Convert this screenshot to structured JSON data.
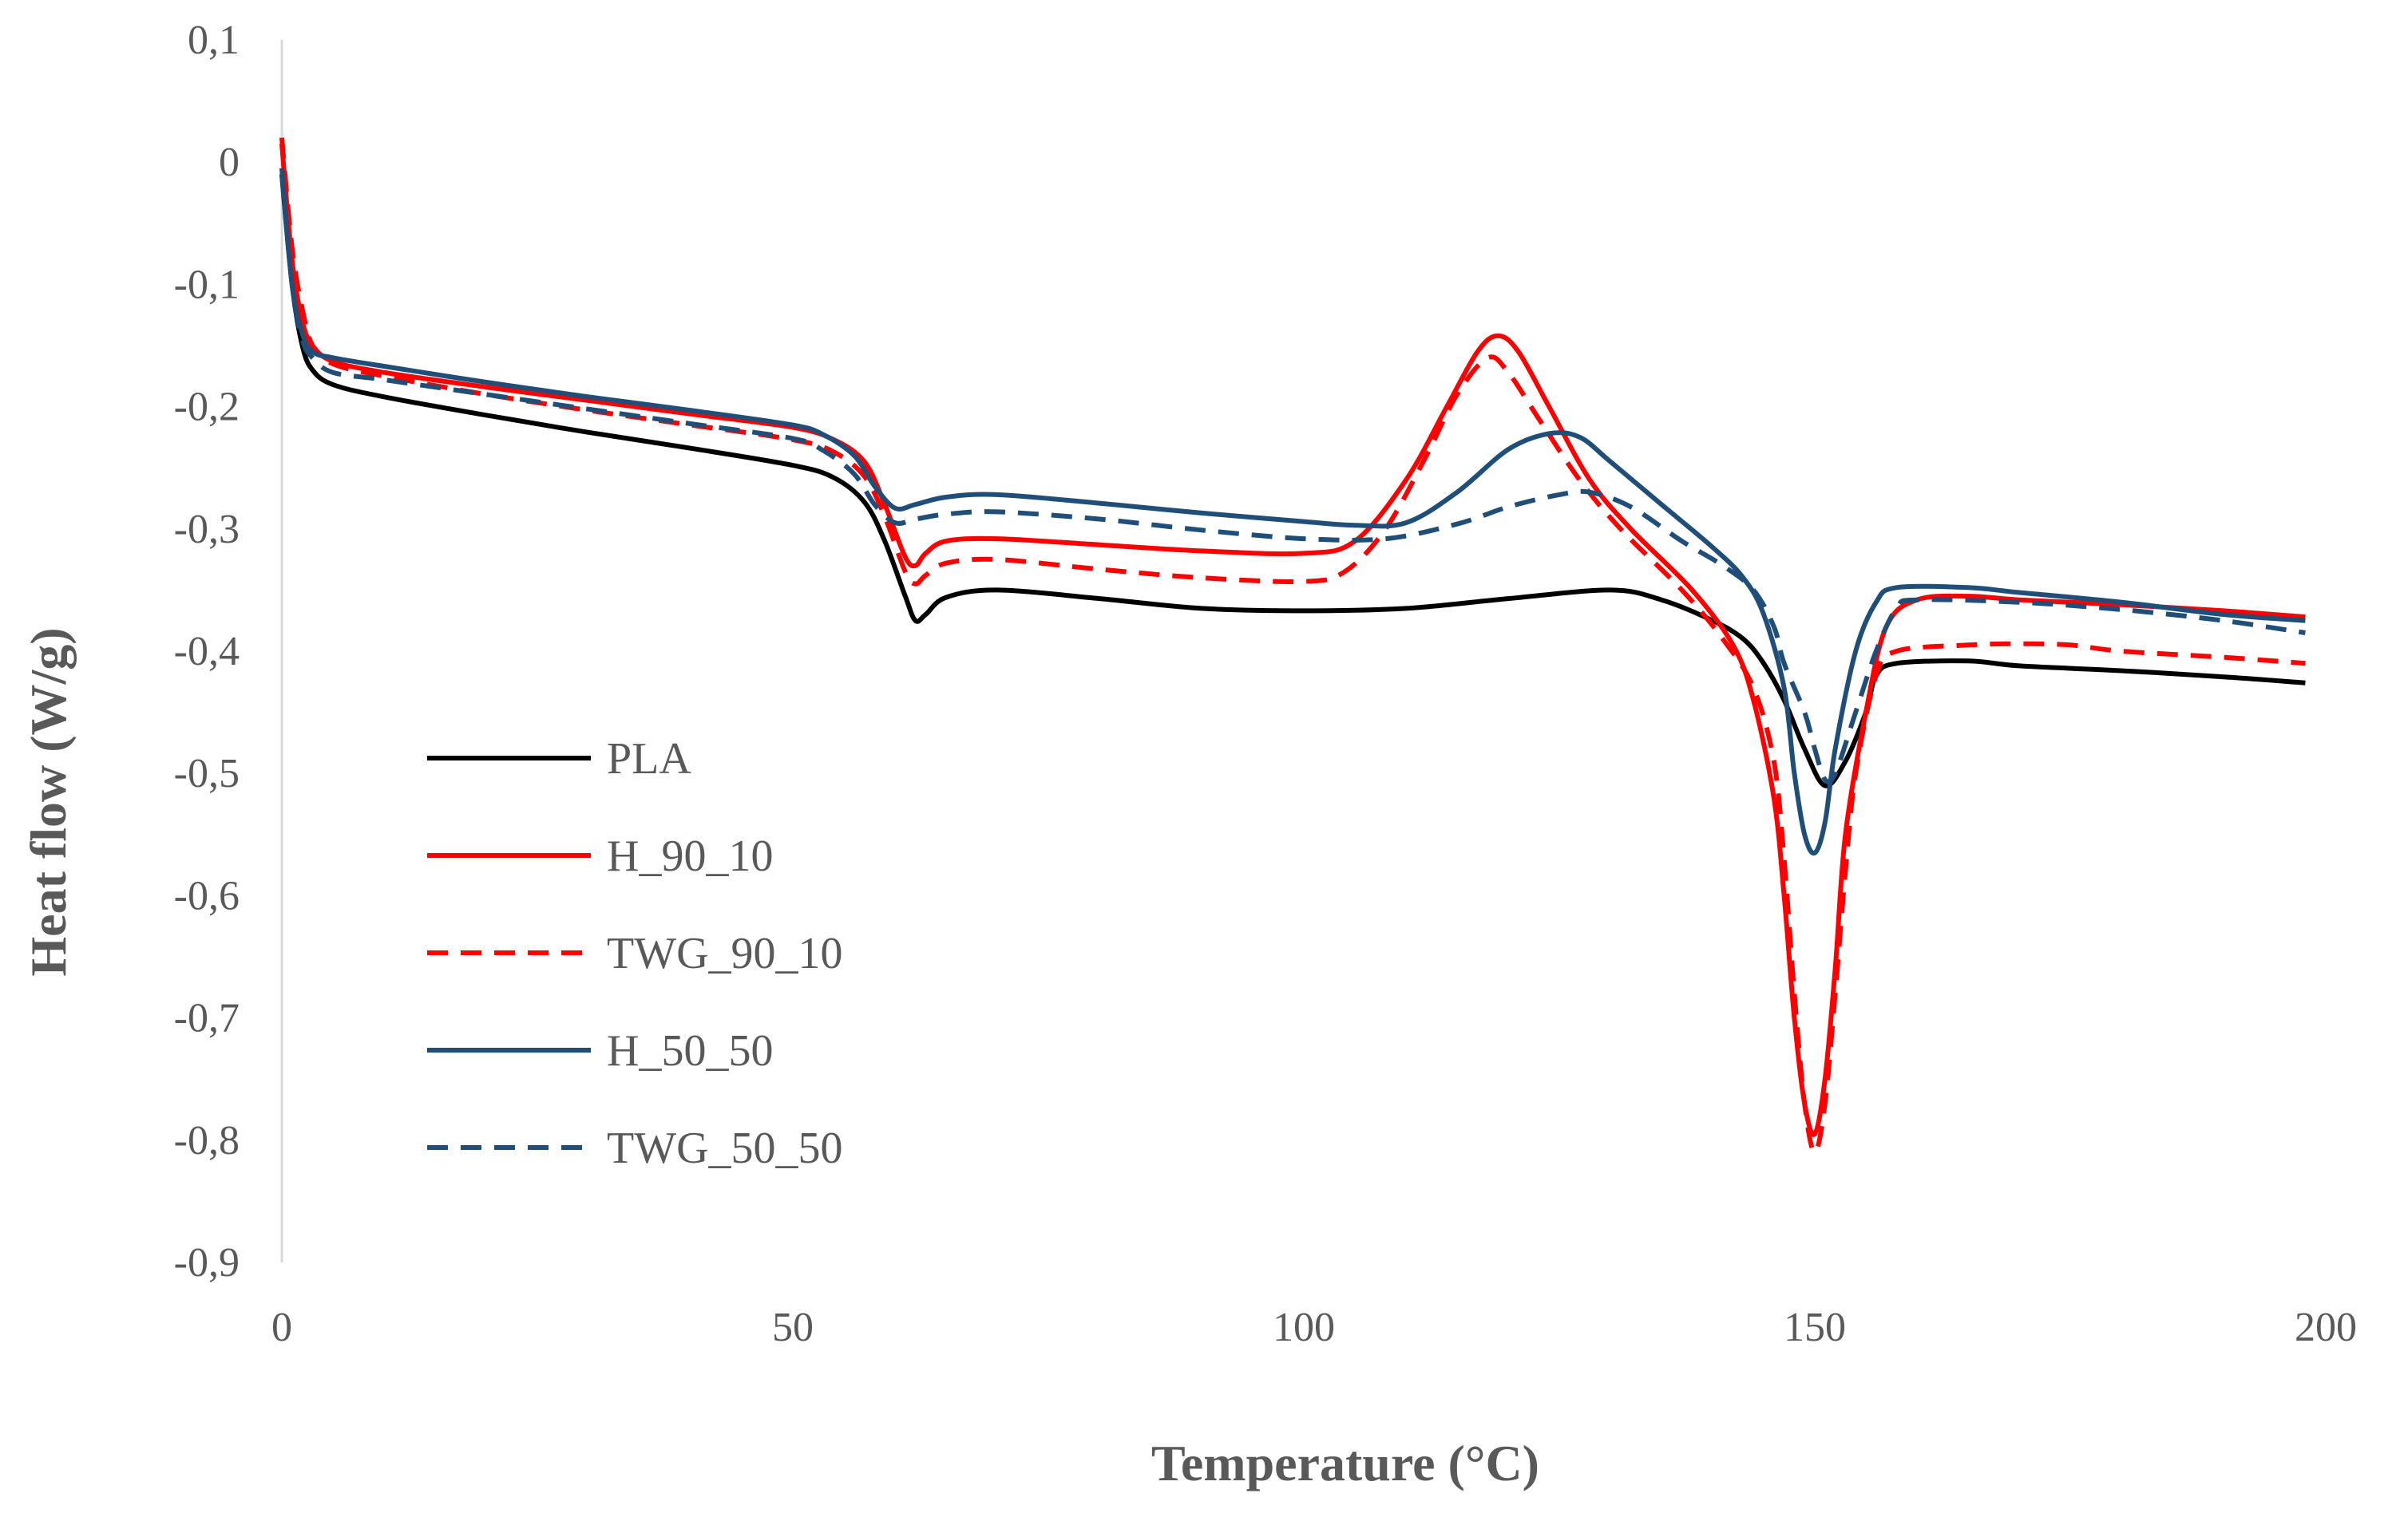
{
  "chart_data": {
    "type": "line",
    "title": "",
    "xlabel": "Temperature (°C)",
    "ylabel": "Heat flow (W/g)",
    "xlim": [
      0,
      200
    ],
    "ylim": [
      -0.9,
      0.1
    ],
    "x_ticks": [
      0,
      50,
      100,
      150,
      200
    ],
    "x_tick_labels": [
      "0",
      "50",
      "100",
      "150",
      "200"
    ],
    "y_ticks": [
      0.1,
      0,
      -0.1,
      -0.2,
      -0.3,
      -0.4,
      -0.5,
      -0.6,
      -0.7,
      -0.8,
      -0.9
    ],
    "y_tick_labels": [
      "0,1",
      "0",
      "-0,1",
      "-0,2",
      "-0,3",
      "-0,4",
      "-0,5",
      "-0,6",
      "-0,7",
      "-0,8",
      "-0,9"
    ],
    "grid": false,
    "legend_position": "left-lower",
    "series": [
      {
        "name": "PLA",
        "color": "#000000",
        "dash": "solid",
        "points": [
          [
            0,
            -0.01
          ],
          [
            1,
            -0.1
          ],
          [
            2,
            -0.15
          ],
          [
            3,
            -0.17
          ],
          [
            5,
            -0.182
          ],
          [
            10,
            -0.192
          ],
          [
            20,
            -0.207
          ],
          [
            30,
            -0.221
          ],
          [
            40,
            -0.234
          ],
          [
            50,
            -0.248
          ],
          [
            54,
            -0.258
          ],
          [
            57,
            -0.278
          ],
          [
            59,
            -0.31
          ],
          [
            61,
            -0.355
          ],
          [
            62,
            -0.375
          ],
          [
            63,
            -0.37
          ],
          [
            65,
            -0.356
          ],
          [
            70,
            -0.35
          ],
          [
            80,
            -0.357
          ],
          [
            90,
            -0.365
          ],
          [
            100,
            -0.367
          ],
          [
            110,
            -0.365
          ],
          [
            120,
            -0.357
          ],
          [
            130,
            -0.35
          ],
          [
            135,
            -0.358
          ],
          [
            140,
            -0.375
          ],
          [
            143,
            -0.39
          ],
          [
            145,
            -0.41
          ],
          [
            147,
            -0.44
          ],
          [
            149,
            -0.48
          ],
          [
            151,
            -0.51
          ],
          [
            153,
            -0.49
          ],
          [
            155,
            -0.45
          ],
          [
            156,
            -0.42
          ],
          [
            158,
            -0.41
          ],
          [
            165,
            -0.408
          ],
          [
            170,
            -0.412
          ],
          [
            180,
            -0.416
          ],
          [
            190,
            -0.421
          ],
          [
            198,
            -0.426
          ]
        ]
      },
      {
        "name": "H_90_10",
        "color": "#ff0000",
        "dash": "solid",
        "points": [
          [
            0,
            0.015
          ],
          [
            1,
            -0.08
          ],
          [
            2,
            -0.13
          ],
          [
            3,
            -0.15
          ],
          [
            5,
            -0.163
          ],
          [
            10,
            -0.172
          ],
          [
            20,
            -0.184
          ],
          [
            30,
            -0.195
          ],
          [
            40,
            -0.206
          ],
          [
            50,
            -0.217
          ],
          [
            54,
            -0.227
          ],
          [
            57,
            -0.245
          ],
          [
            59,
            -0.28
          ],
          [
            61,
            -0.323
          ],
          [
            62,
            -0.33
          ],
          [
            63,
            -0.32
          ],
          [
            65,
            -0.31
          ],
          [
            70,
            -0.308
          ],
          [
            80,
            -0.313
          ],
          [
            90,
            -0.318
          ],
          [
            100,
            -0.32
          ],
          [
            105,
            -0.31
          ],
          [
            110,
            -0.26
          ],
          [
            114,
            -0.2
          ],
          [
            117,
            -0.155
          ],
          [
            119,
            -0.142
          ],
          [
            121,
            -0.155
          ],
          [
            124,
            -0.2
          ],
          [
            128,
            -0.26
          ],
          [
            132,
            -0.3
          ],
          [
            138,
            -0.35
          ],
          [
            142,
            -0.395
          ],
          [
            144,
            -0.44
          ],
          [
            146,
            -0.52
          ],
          [
            147,
            -0.6
          ],
          [
            148,
            -0.7
          ],
          [
            149,
            -0.77
          ],
          [
            150,
            -0.795
          ],
          [
            151,
            -0.75
          ],
          [
            152,
            -0.66
          ],
          [
            153,
            -0.55
          ],
          [
            155,
            -0.45
          ],
          [
            157,
            -0.38
          ],
          [
            160,
            -0.358
          ],
          [
            165,
            -0.355
          ],
          [
            170,
            -0.358
          ],
          [
            180,
            -0.362
          ],
          [
            190,
            -0.367
          ],
          [
            198,
            -0.372
          ]
        ]
      },
      {
        "name": "TWG_90_10",
        "color": "#ff0000",
        "dash": "dashed",
        "points": [
          [
            0,
            0.02
          ],
          [
            1,
            -0.07
          ],
          [
            2,
            -0.12
          ],
          [
            3,
            -0.15
          ],
          [
            5,
            -0.165
          ],
          [
            10,
            -0.175
          ],
          [
            20,
            -0.19
          ],
          [
            30,
            -0.203
          ],
          [
            40,
            -0.215
          ],
          [
            50,
            -0.227
          ],
          [
            54,
            -0.237
          ],
          [
            57,
            -0.257
          ],
          [
            59,
            -0.29
          ],
          [
            61,
            -0.335
          ],
          [
            62,
            -0.345
          ],
          [
            63,
            -0.338
          ],
          [
            65,
            -0.328
          ],
          [
            70,
            -0.325
          ],
          [
            80,
            -0.333
          ],
          [
            90,
            -0.34
          ],
          [
            100,
            -0.343
          ],
          [
            104,
            -0.335
          ],
          [
            108,
            -0.3
          ],
          [
            112,
            -0.24
          ],
          [
            115,
            -0.19
          ],
          [
            118,
            -0.16
          ],
          [
            120,
            -0.172
          ],
          [
            123,
            -0.21
          ],
          [
            127,
            -0.26
          ],
          [
            131,
            -0.3
          ],
          [
            137,
            -0.35
          ],
          [
            141,
            -0.39
          ],
          [
            144,
            -0.43
          ],
          [
            146,
            -0.49
          ],
          [
            147,
            -0.57
          ],
          [
            148,
            -0.68
          ],
          [
            149,
            -0.77
          ],
          [
            150,
            -0.81
          ],
          [
            151,
            -0.77
          ],
          [
            152,
            -0.68
          ],
          [
            153,
            -0.58
          ],
          [
            154,
            -0.5
          ],
          [
            156,
            -0.42
          ],
          [
            158,
            -0.4
          ],
          [
            165,
            -0.395
          ],
          [
            170,
            -0.394
          ],
          [
            175,
            -0.395
          ],
          [
            180,
            -0.4
          ],
          [
            190,
            -0.405
          ],
          [
            198,
            -0.41
          ]
        ]
      },
      {
        "name": "H_50_50",
        "color": "#1f4e79",
        "dash": "solid",
        "points": [
          [
            0,
            -0.005
          ],
          [
            1,
            -0.1
          ],
          [
            2,
            -0.14
          ],
          [
            3,
            -0.155
          ],
          [
            5,
            -0.16
          ],
          [
            10,
            -0.167
          ],
          [
            20,
            -0.18
          ],
          [
            30,
            -0.192
          ],
          [
            40,
            -0.203
          ],
          [
            50,
            -0.215
          ],
          [
            53,
            -0.223
          ],
          [
            56,
            -0.24
          ],
          [
            58,
            -0.265
          ],
          [
            60,
            -0.283
          ],
          [
            62,
            -0.28
          ],
          [
            65,
            -0.274
          ],
          [
            70,
            -0.272
          ],
          [
            80,
            -0.279
          ],
          [
            90,
            -0.287
          ],
          [
            100,
            -0.294
          ],
          [
            105,
            -0.297
          ],
          [
            110,
            -0.295
          ],
          [
            115,
            -0.27
          ],
          [
            120,
            -0.235
          ],
          [
            124,
            -0.222
          ],
          [
            127,
            -0.225
          ],
          [
            130,
            -0.245
          ],
          [
            135,
            -0.28
          ],
          [
            140,
            -0.315
          ],
          [
            143,
            -0.34
          ],
          [
            145,
            -0.37
          ],
          [
            147,
            -0.43
          ],
          [
            148,
            -0.5
          ],
          [
            149,
            -0.55
          ],
          [
            150,
            -0.565
          ],
          [
            151,
            -0.54
          ],
          [
            152,
            -0.48
          ],
          [
            154,
            -0.4
          ],
          [
            156,
            -0.36
          ],
          [
            158,
            -0.348
          ],
          [
            165,
            -0.348
          ],
          [
            170,
            -0.352
          ],
          [
            180,
            -0.36
          ],
          [
            190,
            -0.37
          ],
          [
            198,
            -0.375
          ]
        ]
      },
      {
        "name": "TWG_50_50",
        "color": "#1f4e79",
        "dash": "dashed",
        "points": [
          [
            0,
            -0.01
          ],
          [
            1,
            -0.1
          ],
          [
            2,
            -0.145
          ],
          [
            3,
            -0.16
          ],
          [
            5,
            -0.172
          ],
          [
            10,
            -0.178
          ],
          [
            20,
            -0.19
          ],
          [
            30,
            -0.202
          ],
          [
            40,
            -0.214
          ],
          [
            50,
            -0.226
          ],
          [
            53,
            -0.236
          ],
          [
            56,
            -0.255
          ],
          [
            58,
            -0.28
          ],
          [
            60,
            -0.295
          ],
          [
            62,
            -0.292
          ],
          [
            65,
            -0.288
          ],
          [
            70,
            -0.286
          ],
          [
            80,
            -0.292
          ],
          [
            90,
            -0.301
          ],
          [
            100,
            -0.308
          ],
          [
            108,
            -0.308
          ],
          [
            115,
            -0.296
          ],
          [
            120,
            -0.282
          ],
          [
            125,
            -0.272
          ],
          [
            128,
            -0.27
          ],
          [
            132,
            -0.282
          ],
          [
            137,
            -0.31
          ],
          [
            141,
            -0.33
          ],
          [
            144,
            -0.35
          ],
          [
            146,
            -0.38
          ],
          [
            147,
            -0.41
          ],
          [
            149,
            -0.45
          ],
          [
            150,
            -0.48
          ],
          [
            151,
            -0.505
          ],
          [
            152,
            -0.5
          ],
          [
            154,
            -0.45
          ],
          [
            156,
            -0.4
          ],
          [
            158,
            -0.365
          ],
          [
            160,
            -0.358
          ],
          [
            170,
            -0.36
          ],
          [
            180,
            -0.366
          ],
          [
            190,
            -0.375
          ],
          [
            198,
            -0.385
          ]
        ]
      }
    ]
  }
}
